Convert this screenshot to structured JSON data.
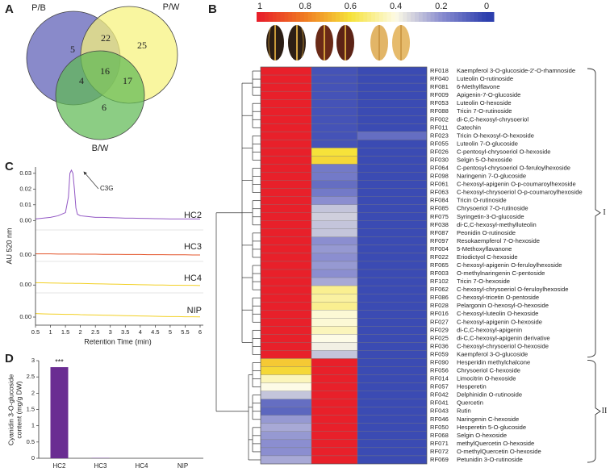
{
  "chart_data": [
    {
      "type": "venn",
      "panel": "A",
      "sets": [
        {
          "name": "P/B",
          "color": "#5c5db6"
        },
        {
          "name": "P/W",
          "color": "#f7f27c"
        },
        {
          "name": "B/W",
          "color": "#5fba55"
        }
      ],
      "regions": [
        {
          "sets": [
            0
          ],
          "value": 5
        },
        {
          "sets": [
            1
          ],
          "value": 25
        },
        {
          "sets": [
            2
          ],
          "value": 6
        },
        {
          "sets": [
            0,
            1
          ],
          "value": 22
        },
        {
          "sets": [
            0,
            2
          ],
          "value": 4
        },
        {
          "sets": [
            1,
            2
          ],
          "value": 17
        },
        {
          "sets": [
            0,
            1,
            2
          ],
          "value": 16
        }
      ]
    },
    {
      "type": "heatmap",
      "panel": "B",
      "colorscale": [
        [
          0,
          "#2d3fae"
        ],
        [
          0.2,
          "#8b8ed0"
        ],
        [
          0.4,
          "#fdfbe6"
        ],
        [
          0.6,
          "#f6e23a"
        ],
        [
          0.8,
          "#f07c22"
        ],
        [
          1,
          "#e8202a"
        ]
      ],
      "colorbar_ticks": [
        1,
        0.8,
        0.6,
        0.4,
        0.2,
        0
      ],
      "rows": [
        {
          "id": "RF018",
          "name": "Kaempferol 3-O-glucoside-2'-O-rhamnoside",
          "values": [
            1,
            0.05,
            0.03
          ]
        },
        {
          "id": "RF040",
          "name": "Luteolin O-rutinoside",
          "values": [
            1,
            0.05,
            0.03
          ]
        },
        {
          "id": "RF081",
          "name": "6-Methylflavone",
          "values": [
            1,
            0.05,
            0.03
          ]
        },
        {
          "id": "RF009",
          "name": "Apigenin-7-O-glucoside",
          "values": [
            1,
            0.05,
            0.03
          ]
        },
        {
          "id": "RF053",
          "name": "Luteolin O-hexoside",
          "values": [
            1,
            0.05,
            0.03
          ]
        },
        {
          "id": "RF088",
          "name": "Tricin 7-O-rutinoside",
          "values": [
            1,
            0.05,
            0.03
          ]
        },
        {
          "id": "RF002",
          "name": "di-C,C-hexosyl-chrysoeriol",
          "values": [
            1,
            0.05,
            0.03
          ]
        },
        {
          "id": "RF011",
          "name": "Catechin",
          "values": [
            1,
            0.05,
            0.03
          ]
        },
        {
          "id": "RF023",
          "name": "Tricin O-hexosyl-O-hexoside",
          "values": [
            1,
            0.05,
            0.12
          ]
        },
        {
          "id": "RF055",
          "name": "Luteolin 7-O-glucoside",
          "values": [
            1,
            0.05,
            0.03
          ]
        },
        {
          "id": "RF026",
          "name": "C-pentosyl-chrysoeriol O-hexoside",
          "values": [
            1,
            0.6,
            0.03
          ]
        },
        {
          "id": "RF030",
          "name": "Selgin 5-O-hexoside",
          "values": [
            1,
            0.62,
            0.03
          ]
        },
        {
          "id": "RF064",
          "name": "C-pentosyl-chrysoeriol O-feruloylhexoside",
          "values": [
            1,
            0.15,
            0.03
          ]
        },
        {
          "id": "RF098",
          "name": "Naringenin 7-O-glucoside",
          "values": [
            1,
            0.15,
            0.03
          ]
        },
        {
          "id": "RF061",
          "name": "C-hexosyl-apigenin O-p-coumaroylhexoside",
          "values": [
            1,
            0.12,
            0.03
          ]
        },
        {
          "id": "RF063",
          "name": "C-hexosyl-chrysoeriol O-p-coumaroylhexoside",
          "values": [
            1,
            0.15,
            0.03
          ]
        },
        {
          "id": "RF084",
          "name": "Tricin O-rutinoside",
          "values": [
            1,
            0.2,
            0.03
          ]
        },
        {
          "id": "RF085",
          "name": "Chrysoeriol 7-O-rutinoside",
          "values": [
            1,
            0.3,
            0.03
          ]
        },
        {
          "id": "RF075",
          "name": "Syringetin-3-O-glucoside",
          "values": [
            1,
            0.32,
            0.03
          ]
        },
        {
          "id": "RF038",
          "name": "di-C,C-hexosyl-methylluteolin",
          "values": [
            1,
            0.3,
            0.03
          ]
        },
        {
          "id": "RF087",
          "name": "Peonidin O-rutinoside",
          "values": [
            1,
            0.3,
            0.03
          ]
        },
        {
          "id": "RF097",
          "name": "Resokaempferol 7-O-hexoside",
          "values": [
            1,
            0.2,
            0.03
          ]
        },
        {
          "id": "RF004",
          "name": "5-Methoxyflavanone",
          "values": [
            1,
            0.22,
            0.03
          ]
        },
        {
          "id": "RF022",
          "name": "Eriodictyol C-hexoside",
          "values": [
            1,
            0.2,
            0.03
          ]
        },
        {
          "id": "RF065",
          "name": "C-hexosyl-apigenin O-feruloylhexoside",
          "values": [
            1,
            0.22,
            0.03
          ]
        },
        {
          "id": "RF003",
          "name": "O-methylnaringenin C-pentoside",
          "values": [
            1,
            0.2,
            0.03
          ]
        },
        {
          "id": "RF102",
          "name": "Tricin 7-O-hexoside",
          "values": [
            1,
            0.25,
            0.03
          ]
        },
        {
          "id": "RF062",
          "name": "C-hexosyl-chrysoeriol O-feruloylhexoside",
          "values": [
            1,
            0.5,
            0.03
          ]
        },
        {
          "id": "RF086",
          "name": "C-hexosyl-tricetin O-pentoside",
          "values": [
            1,
            0.48,
            0.03
          ]
        },
        {
          "id": "RF028",
          "name": "Pelargonin O-hexosyl-O-hexoside",
          "values": [
            1,
            0.5,
            0.03
          ]
        },
        {
          "id": "RF016",
          "name": "C-hexosyl-luteolin O-hexoside",
          "values": [
            1,
            0.42,
            0.03
          ]
        },
        {
          "id": "RF027",
          "name": "C-hexosyl-apigenin O-hexoside",
          "values": [
            1,
            0.42,
            0.03
          ]
        },
        {
          "id": "RF029",
          "name": "di-C,C-hexosyl-apigenin",
          "values": [
            1,
            0.45,
            0.03
          ]
        },
        {
          "id": "RF025",
          "name": "di-C,C-hexosyl-apigenin derivative",
          "values": [
            1,
            0.4,
            0.03
          ]
        },
        {
          "id": "RF036",
          "name": "C-hexosyl-chrysoeriol O-hexoside",
          "values": [
            1,
            0.38,
            0.03
          ]
        },
        {
          "id": "RF059",
          "name": "Kaempferol 3-O-glucoside",
          "values": [
            1,
            0.3,
            0.03
          ]
        },
        {
          "id": "RF090",
          "name": "Hesperidin methylchalcone",
          "values": [
            0.65,
            1,
            0.03
          ]
        },
        {
          "id": "RF056",
          "name": "Chrysoeriol C-hexoside",
          "values": [
            0.62,
            1,
            0.03
          ]
        },
        {
          "id": "RF014",
          "name": "Limocitrin O-hexoside",
          "values": [
            0.45,
            1,
            0.03
          ]
        },
        {
          "id": "RF057",
          "name": "Hesperetin",
          "values": [
            0.4,
            1,
            0.03
          ]
        },
        {
          "id": "RF042",
          "name": "Delphinidin O-rutinoside",
          "values": [
            0.3,
            1,
            0.03
          ]
        },
        {
          "id": "RF041",
          "name": "Quercetin",
          "values": [
            0.12,
            1,
            0.03
          ]
        },
        {
          "id": "RF043",
          "name": "Rutin",
          "values": [
            0.1,
            1,
            0.03
          ]
        },
        {
          "id": "RF046",
          "name": "Naringenin C-hexoside",
          "values": [
            0.22,
            1,
            0.03
          ]
        },
        {
          "id": "RF050",
          "name": "Hesperetin 5-O-glucoside",
          "values": [
            0.25,
            1,
            0.03
          ]
        },
        {
          "id": "RF068",
          "name": "Selgin O-hexoside",
          "values": [
            0.22,
            1,
            0.03
          ]
        },
        {
          "id": "RF071",
          "name": "methylQuercetin O-hexoside",
          "values": [
            0.2,
            1,
            0.03
          ]
        },
        {
          "id": "RF072",
          "name": "O-methylQuercetin O-hexoside",
          "values": [
            0.2,
            1,
            0.03
          ]
        },
        {
          "id": "RF069",
          "name": "Petunidin 3-O-rutinoside",
          "values": [
            0.25,
            1,
            0.03
          ]
        }
      ],
      "groups": [
        {
          "label": "I",
          "first": 0,
          "last": 35
        },
        {
          "label": "II",
          "first": 36,
          "last": 48
        }
      ]
    },
    {
      "type": "line",
      "panel": "C",
      "ylabel": "AU 520 nm",
      "xlabel": "Retention Time (min)",
      "annotation": "C3G",
      "x": [
        0.5,
        0.75,
        1,
        1.25,
        1.5,
        1.6,
        1.65,
        1.7,
        1.75,
        1.8,
        1.85,
        1.9,
        2,
        2.25,
        2.5,
        2.75,
        3,
        3.25,
        3.5,
        3.75,
        4,
        4.25,
        4.5,
        4.75,
        5,
        5.25,
        5.5,
        5.75,
        6
      ],
      "xlim": [
        0.5,
        6
      ],
      "xticks": [
        0.5,
        1,
        1.5,
        2,
        2.5,
        3,
        3.5,
        4,
        4.5,
        5,
        5.5,
        6
      ],
      "series": [
        {
          "name": "HC2",
          "color": "#9257c4",
          "ylim": [
            -0.006,
            0.034
          ],
          "yticks": [
            {
              "value": 0,
              "label": "0.00"
            },
            {
              "value": 0.01,
              "label": "0.01"
            },
            {
              "value": 0.02,
              "label": "0.02"
            },
            {
              "value": 0.03,
              "label": "0.03"
            }
          ],
          "values": [
            0.001,
            0.0015,
            0.002,
            0.003,
            0.005,
            0.015,
            0.03,
            0.032,
            0.03,
            0.02,
            0.008,
            0.004,
            0.003,
            0.0025,
            0.002,
            0.002,
            0.0018,
            0.0017,
            0.0015,
            0.0015,
            0.0014,
            0.0013,
            0.0012,
            0.0011,
            0.001,
            0.001,
            0.001,
            0.001,
            0.001
          ]
        },
        {
          "name": "HC3",
          "color": "#e4572e",
          "ylim": [
            -0.004,
            0.016
          ],
          "yticks": [
            {
              "value": 0,
              "label": "0.00"
            }
          ],
          "values": [
            0.0008,
            0.0008,
            0.0008,
            0.0007,
            0.0007,
            0.0007,
            0.0007,
            0.0007,
            0.0007,
            0.0007,
            0.0007,
            0.0007,
            0.0006,
            0.0006,
            0.0006,
            0.0005,
            0.0005,
            0.0005,
            0.0004,
            0.0004,
            0.0004,
            0.0003,
            0.0003,
            0.0003,
            0.0002,
            0.0002,
            0.0002,
            0.0001,
            0.0001
          ]
        },
        {
          "name": "HC4",
          "color": "#f2d024",
          "ylim": [
            -0.005,
            0.015
          ],
          "yticks": [
            {
              "value": 0,
              "label": "0.00"
            }
          ],
          "values": [
            0.0015,
            0.0014,
            0.0013,
            0.0012,
            0.0011,
            0.0011,
            0.0011,
            0.0011,
            0.0011,
            0.001,
            0.001,
            0.001,
            0.001,
            0.0009,
            0.0008,
            0.0007,
            0.0006,
            0.0005,
            0.0004,
            0.0003,
            0.0002,
            0.0001,
            0,
            0,
            -0.0001,
            -0.0001,
            -0.0002,
            -0.0002,
            -0.0003
          ]
        },
        {
          "name": "NIP",
          "color": "#f2d024",
          "ylim": [
            -0.005,
            0.015
          ],
          "yticks": [
            {
              "value": 0,
              "label": "0.00"
            }
          ],
          "values": [
            0.0022,
            0.002,
            0.0019,
            0.0018,
            0.0017,
            0.0017,
            0.0017,
            0.0017,
            0.0017,
            0.0016,
            0.0016,
            0.0016,
            0.0015,
            0.0014,
            0.0013,
            0.0012,
            0.0011,
            0.001,
            0.0009,
            0.0008,
            0.0007,
            0.0006,
            0.0005,
            0.0004,
            0.0003,
            0.0003,
            0.0002,
            0.0002,
            0.0001
          ]
        }
      ]
    },
    {
      "type": "bar",
      "panel": "D",
      "ylabel": [
        "Cyanidin 3-O-glucoside",
        "content (mg/g DW)"
      ],
      "categories": [
        "HC2",
        "HC3",
        "HC4",
        "NIP"
      ],
      "values": [
        2.8,
        0.01,
        0,
        0
      ],
      "color": "#6a2d92",
      "annotation": "***",
      "ylim": [
        0,
        3
      ],
      "yticks": [
        0,
        0.5,
        1,
        1.5,
        2,
        2.5,
        3
      ]
    }
  ]
}
